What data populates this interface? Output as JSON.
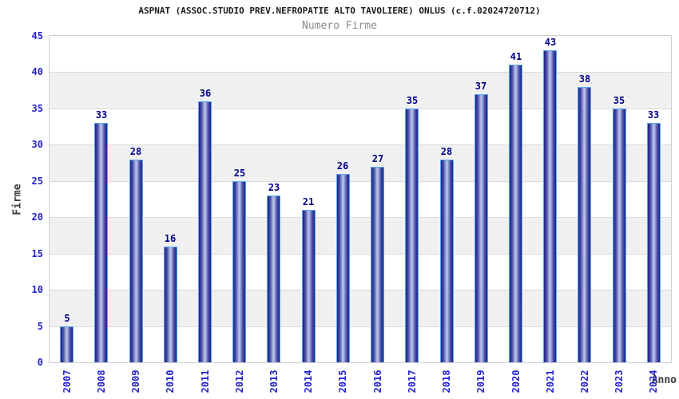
{
  "chart_data": {
    "type": "bar",
    "title": "ASPNAT (ASSOC.STUDIO PREV.NEFROPATIE ALTO TAVOLIERE) ONLUS (c.f.02024720712)",
    "subtitle": "Numero Firme",
    "xlabel": "Anno",
    "ylabel": "Firme",
    "categories": [
      "2007",
      "2008",
      "2009",
      "2010",
      "2011",
      "2012",
      "2013",
      "2014",
      "2015",
      "2016",
      "2017",
      "2018",
      "2019",
      "2020",
      "2021",
      "2022",
      "2023",
      "2024"
    ],
    "values": [
      5,
      33,
      28,
      16,
      36,
      25,
      23,
      21,
      26,
      27,
      35,
      28,
      37,
      41,
      43,
      38,
      35,
      33
    ],
    "ylim": [
      0,
      45
    ],
    "ytick_step": 5,
    "legend": "none",
    "grid": "horizontal-alternating-bands",
    "colors": {
      "background": "#ffffff",
      "plot_border": "#d0d0d0",
      "band_alt": "#f0f0f0",
      "gridline": "#dadada",
      "bar_edge": "#58a8f0",
      "bar_dark": "#1c2188",
      "bar_mid": "#4b52a8",
      "bar_light": "#b8bfe9",
      "tick_label": "#2222cc",
      "value_label": "#00008b",
      "axis_label": "#3c3c3c",
      "title": "#1a1a1a",
      "subtitle": "#8c8c8c"
    }
  }
}
